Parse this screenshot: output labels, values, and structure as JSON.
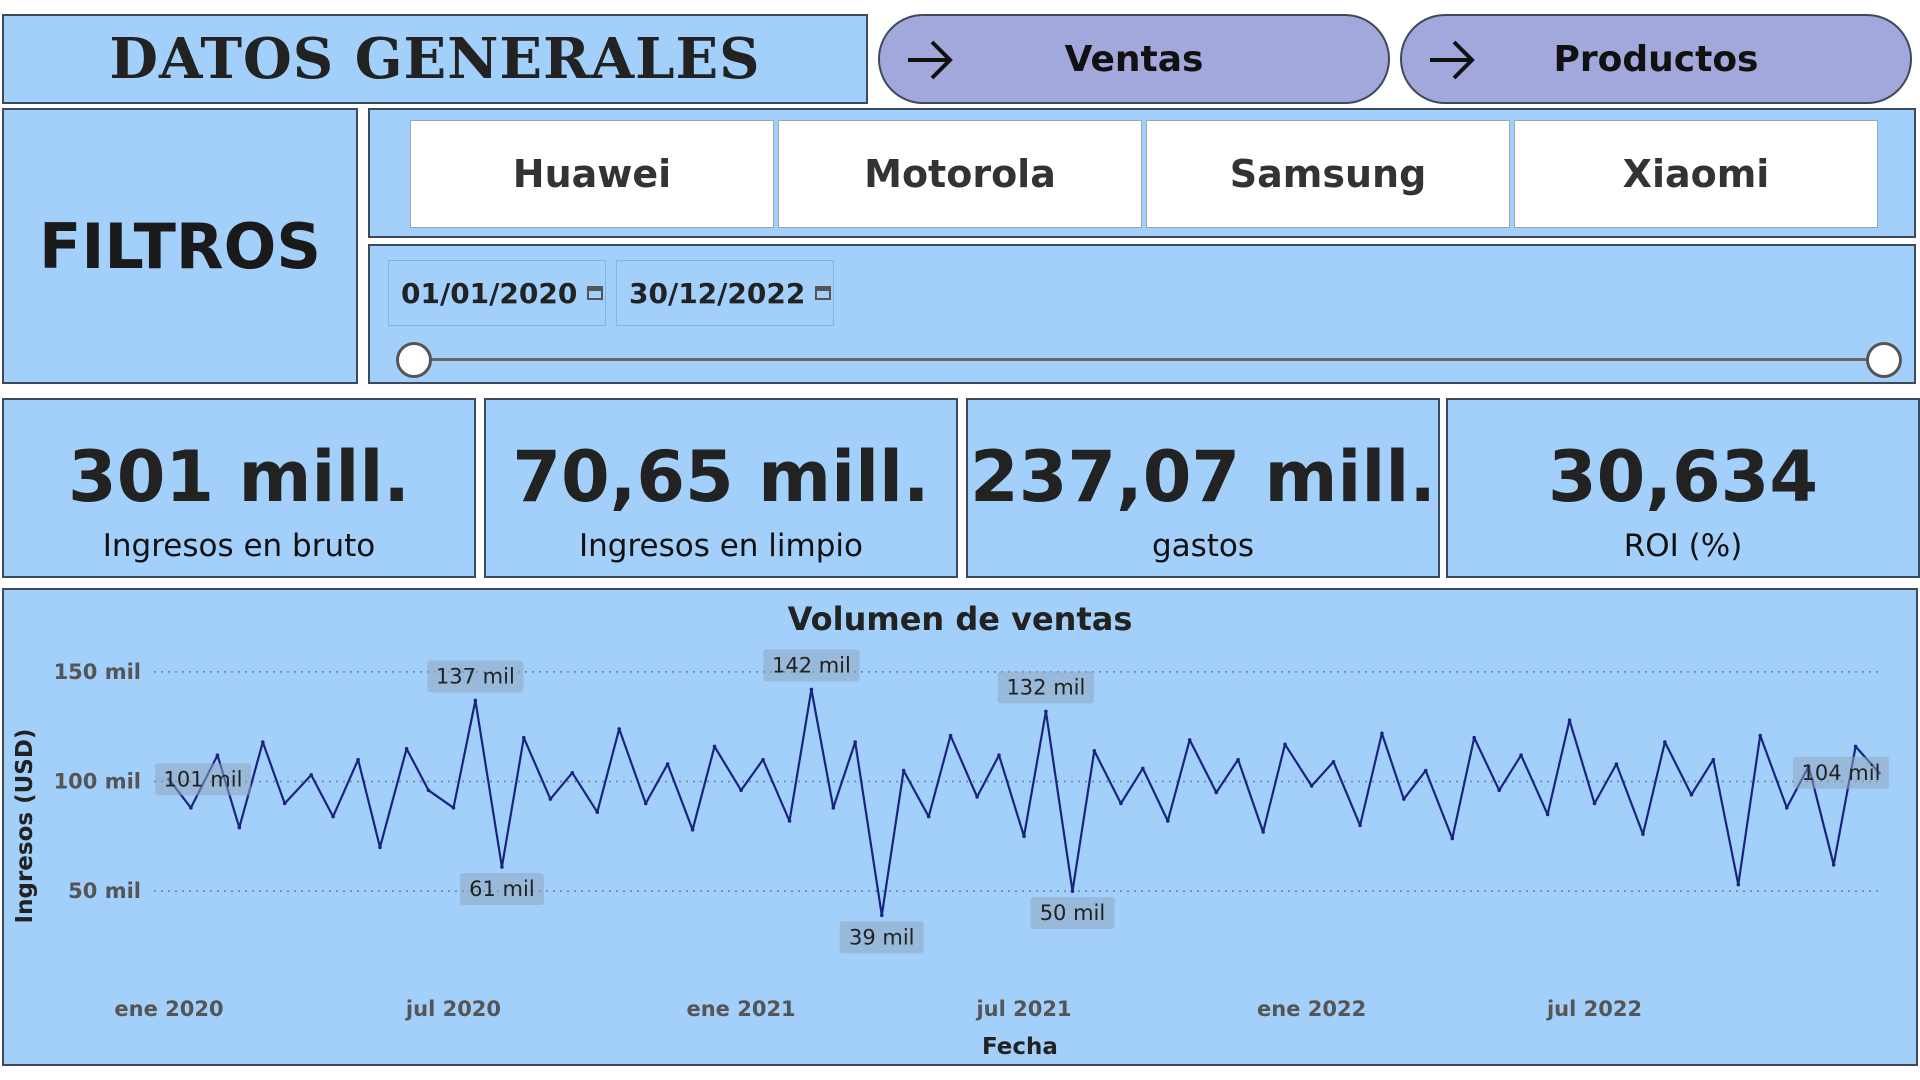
{
  "header": {
    "title": "DATOS GENERALES",
    "nav": [
      {
        "label": "Ventas",
        "icon": "arrow-right-icon"
      },
      {
        "label": "Productos",
        "icon": "arrow-right-icon"
      }
    ]
  },
  "filters": {
    "label": "FILTROS",
    "brands": [
      "Huawei",
      "Motorola",
      "Samsung",
      "Xiaomi"
    ],
    "date_start": "01/01/2020",
    "date_end": "30/12/2022",
    "date_range_fraction": [
      0,
      1
    ]
  },
  "kpis": [
    {
      "value": "301 mill.",
      "caption": "Ingresos en bruto"
    },
    {
      "value": "70,65 mill.",
      "caption": "Ingresos en limpio"
    },
    {
      "value": "237,07 mill.",
      "caption": "gastos"
    },
    {
      "value": "30,634",
      "caption": "ROI (%)"
    }
  ],
  "colors": {
    "panel": "#a3d0fb",
    "nav_button": "#a3a8dc",
    "line": "#1a237e"
  },
  "chart_data": {
    "type": "line",
    "title": "Volumen de ventas",
    "xlabel": "Fecha",
    "ylabel": "Ingresos (USD)",
    "x_range": [
      "2020-01-01",
      "2022-12-30"
    ],
    "ylim": [
      30000,
      160000
    ],
    "y_ticks": [
      {
        "value": 50000,
        "label": "50 mil"
      },
      {
        "value": 100000,
        "label": "100 mil"
      },
      {
        "value": 150000,
        "label": "150 mil"
      }
    ],
    "x_ticks": [
      {
        "date": "2020-01-01",
        "label": "ene 2020"
      },
      {
        "date": "2020-07-01",
        "label": "jul 2020"
      },
      {
        "date": "2021-01-01",
        "label": "ene 2021"
      },
      {
        "date": "2021-07-01",
        "label": "jul 2021"
      },
      {
        "date": "2022-01-01",
        "label": "ene 2022"
      },
      {
        "date": "2022-07-01",
        "label": "jul 2022"
      }
    ],
    "grid": "horizontal dotted",
    "series": [
      {
        "points": [
          [
            "2020-01-01",
            101000
          ],
          [
            "2020-01-15",
            88000
          ],
          [
            "2020-02-01",
            112000
          ],
          [
            "2020-02-15",
            79000
          ],
          [
            "2020-03-01",
            118000
          ],
          [
            "2020-03-15",
            90000
          ],
          [
            "2020-04-01",
            103000
          ],
          [
            "2020-04-15",
            84000
          ],
          [
            "2020-05-01",
            110000
          ],
          [
            "2020-05-15",
            70000
          ],
          [
            "2020-06-01",
            115000
          ],
          [
            "2020-06-15",
            96000
          ],
          [
            "2020-07-01",
            88000
          ],
          [
            "2020-07-15",
            137000
          ],
          [
            "2020-08-01",
            61000
          ],
          [
            "2020-08-15",
            120000
          ],
          [
            "2020-09-01",
            92000
          ],
          [
            "2020-09-15",
            104000
          ],
          [
            "2020-10-01",
            86000
          ],
          [
            "2020-10-15",
            124000
          ],
          [
            "2020-11-01",
            90000
          ],
          [
            "2020-11-15",
            108000
          ],
          [
            "2020-12-01",
            78000
          ],
          [
            "2020-12-15",
            116000
          ],
          [
            "2021-01-01",
            96000
          ],
          [
            "2021-01-15",
            110000
          ],
          [
            "2021-02-01",
            82000
          ],
          [
            "2021-02-15",
            142000
          ],
          [
            "2021-03-01",
            88000
          ],
          [
            "2021-03-15",
            118000
          ],
          [
            "2021-04-01",
            39000
          ],
          [
            "2021-04-15",
            105000
          ],
          [
            "2021-05-01",
            84000
          ],
          [
            "2021-05-15",
            121000
          ],
          [
            "2021-06-01",
            93000
          ],
          [
            "2021-06-15",
            112000
          ],
          [
            "2021-07-01",
            75000
          ],
          [
            "2021-07-15",
            132000
          ],
          [
            "2021-08-01",
            50000
          ],
          [
            "2021-08-15",
            114000
          ],
          [
            "2021-09-01",
            90000
          ],
          [
            "2021-09-15",
            106000
          ],
          [
            "2021-10-01",
            82000
          ],
          [
            "2021-10-15",
            119000
          ],
          [
            "2021-11-01",
            95000
          ],
          [
            "2021-11-15",
            110000
          ],
          [
            "2021-12-01",
            77000
          ],
          [
            "2021-12-15",
            117000
          ],
          [
            "2022-01-01",
            98000
          ],
          [
            "2022-01-15",
            109000
          ],
          [
            "2022-02-01",
            80000
          ],
          [
            "2022-02-15",
            122000
          ],
          [
            "2022-03-01",
            92000
          ],
          [
            "2022-03-15",
            105000
          ],
          [
            "2022-04-01",
            74000
          ],
          [
            "2022-04-15",
            120000
          ],
          [
            "2022-05-01",
            96000
          ],
          [
            "2022-05-15",
            112000
          ],
          [
            "2022-06-01",
            85000
          ],
          [
            "2022-06-15",
            128000
          ],
          [
            "2022-07-01",
            90000
          ],
          [
            "2022-07-15",
            108000
          ],
          [
            "2022-08-01",
            76000
          ],
          [
            "2022-08-15",
            118000
          ],
          [
            "2022-09-01",
            94000
          ],
          [
            "2022-09-15",
            110000
          ],
          [
            "2022-10-01",
            53000
          ],
          [
            "2022-10-15",
            121000
          ],
          [
            "2022-11-01",
            88000
          ],
          [
            "2022-11-15",
            107000
          ],
          [
            "2022-12-01",
            62000
          ],
          [
            "2022-12-15",
            116000
          ],
          [
            "2022-12-30",
            104000
          ]
        ]
      }
    ],
    "data_labels": [
      {
        "date": "2020-01-01",
        "value": 101000,
        "label": "101 mil"
      },
      {
        "date": "2020-07-15",
        "value": 137000,
        "label": "137 mil"
      },
      {
        "date": "2020-08-01",
        "value": 61000,
        "label": "61 mil"
      },
      {
        "date": "2021-02-15",
        "value": 142000,
        "label": "142 mil"
      },
      {
        "date": "2021-04-01",
        "value": 39000,
        "label": "39 mil"
      },
      {
        "date": "2021-07-15",
        "value": 132000,
        "label": "132 mil"
      },
      {
        "date": "2021-08-01",
        "value": 50000,
        "label": "50 mil"
      },
      {
        "date": "2022-12-30",
        "value": 104000,
        "label": "104 mil"
      }
    ]
  }
}
